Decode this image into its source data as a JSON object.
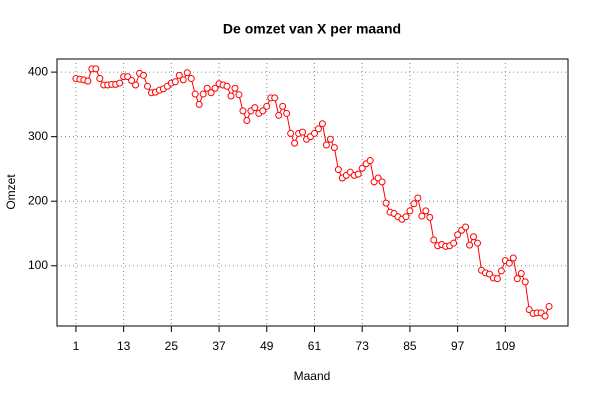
{
  "chart_data": {
    "type": "line",
    "title": "De omzet van X per maand",
    "x_label": "Maand",
    "y_label": "Omzet",
    "x": [
      1,
      2,
      3,
      4,
      5,
      6,
      7,
      8,
      9,
      10,
      11,
      12,
      13,
      14,
      15,
      16,
      17,
      18,
      19,
      20,
      21,
      22,
      23,
      24,
      25,
      26,
      27,
      28,
      29,
      30,
      31,
      32,
      33,
      34,
      35,
      36,
      37,
      38,
      39,
      40,
      41,
      42,
      43,
      44,
      45,
      46,
      47,
      48,
      49,
      50,
      51,
      52,
      53,
      54,
      55,
      56,
      57,
      58,
      59,
      60,
      61,
      62,
      63,
      64,
      65,
      66,
      67,
      68,
      69,
      70,
      71,
      72,
      73,
      74,
      75,
      76,
      77,
      78,
      79,
      80,
      81,
      82,
      83,
      84,
      85,
      86,
      87,
      88,
      89,
      90,
      91,
      92,
      93,
      94,
      95,
      96,
      97,
      98,
      99,
      100,
      101,
      102,
      103,
      104,
      105,
      106,
      107,
      108,
      109,
      110,
      111,
      112,
      113,
      114,
      115,
      116,
      117,
      118,
      119,
      120
    ],
    "series": [
      {
        "color": "#ff0000",
        "values": [
          390,
          389,
          388,
          386,
          405,
          405,
          390,
          380,
          380,
          381,
          381,
          383,
          393,
          393,
          387,
          380,
          398,
          395,
          378,
          368,
          369,
          372,
          374,
          378,
          383,
          385,
          395,
          388,
          399,
          390,
          366,
          350,
          366,
          375,
          368,
          375,
          382,
          380,
          378,
          363,
          375,
          365,
          340,
          325,
          340,
          345,
          336,
          340,
          347,
          360,
          360,
          333,
          347,
          336,
          305,
          290,
          305,
          307,
          296,
          300,
          305,
          312,
          320,
          287,
          296,
          283,
          249,
          236,
          240,
          245,
          240,
          242,
          251,
          258,
          263,
          230,
          236,
          230,
          197,
          183,
          181,
          176,
          172,
          176,
          185,
          196,
          205,
          177,
          185,
          175,
          140,
          131,
          133,
          130,
          131,
          135,
          148,
          155,
          160,
          132,
          145,
          135,
          93,
          89,
          87,
          81,
          80,
          92,
          108,
          104,
          112,
          80,
          88,
          75,
          32,
          26,
          27,
          27,
          22,
          37
        ]
      }
    ],
    "xlim": [
      -3.76,
      124.76
    ],
    "ylim": [
      6.7,
      420.3
    ],
    "xticks": [
      1,
      13,
      25,
      37,
      49,
      61,
      73,
      85,
      97,
      109
    ],
    "yticks": [
      100,
      200,
      300,
      400
    ],
    "grid": true
  }
}
